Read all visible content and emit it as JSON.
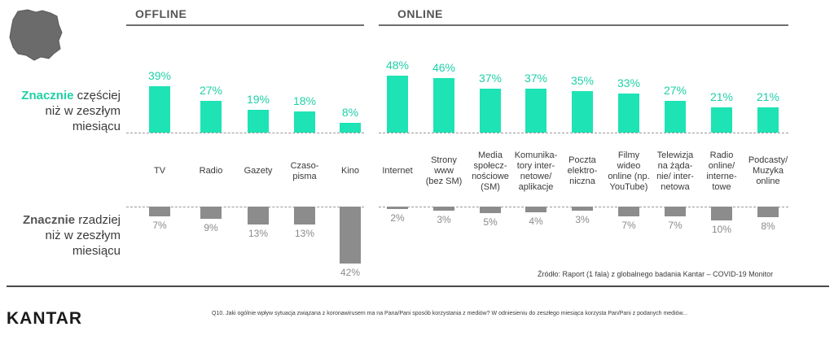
{
  "header": {
    "offline_title": "OFFLINE",
    "online_title": "ONLINE"
  },
  "row_labels": {
    "top_highlight": "Znacznie",
    "top_rest_1": " częściej",
    "top_line_2": "niż w zeszłym",
    "top_line_3": "miesiącu",
    "bottom_highlight": "Znacznie",
    "bottom_rest_1": " rzadziej",
    "bottom_line_2": "niż w zeszłym",
    "bottom_line_3": "miesiącu"
  },
  "chart_data": {
    "type": "bar",
    "categories": [
      "TV",
      "Radio",
      "Gazety",
      "Czaso-\npisma",
      "Kino",
      "Internet",
      "Strony\nwww\n(bez SM)",
      "Media\nspołecz-\nnościowe\n(SM)",
      "Komunika-\ntory inter-\nnetowe/\naplikacje",
      "Poczta\nelektro-\nniczna",
      "Filmy\nwideo\nonline (np.\nYouTube)",
      "Telewizja\nna żąda-\nnie/ inter-\nnetowa",
      "Radio\nonline/\ninterne-\ntowe",
      "Podcasty/\nMuzyka\nonline"
    ],
    "series": [
      {
        "values": [
          39,
          27,
          19,
          18,
          8,
          48,
          46,
          37,
          37,
          35,
          33,
          27,
          21,
          21
        ]
      },
      {
        "values": [
          7,
          9,
          13,
          13,
          42,
          2,
          3,
          5,
          4,
          3,
          7,
          7,
          10,
          8
        ]
      }
    ],
    "top_labels": [
      "39%",
      "27%",
      "19%",
      "18%",
      "8%",
      "48%",
      "46%",
      "37%",
      "37%",
      "35%",
      "33%",
      "27%",
      "21%",
      "21%"
    ],
    "bottom_labels": [
      "7%",
      "9%",
      "13%",
      "13%",
      "42%",
      "2%",
      "3%",
      "5%",
      "4%",
      "3%",
      "7%",
      "7%",
      "10%",
      "8%"
    ],
    "colors": {
      "top": "#1ee3b4",
      "bottom": "#8c8c8c"
    }
  },
  "source": "Źródło: Raport (1 fala) z globalnego  badania Kantar – COVID-19 Monitor",
  "footer": {
    "logo": "KANTAR",
    "question": "Q10. Jaki ogólnie wpływ sytuacja związana z koronawirusem ma na Pana/Pani sposób korzystania z mediów? W odniesieniu do zeszłego miesiąca korzysta Pan/Pani z podanych mediów..."
  },
  "icons": {
    "map": "poland-map-icon"
  }
}
